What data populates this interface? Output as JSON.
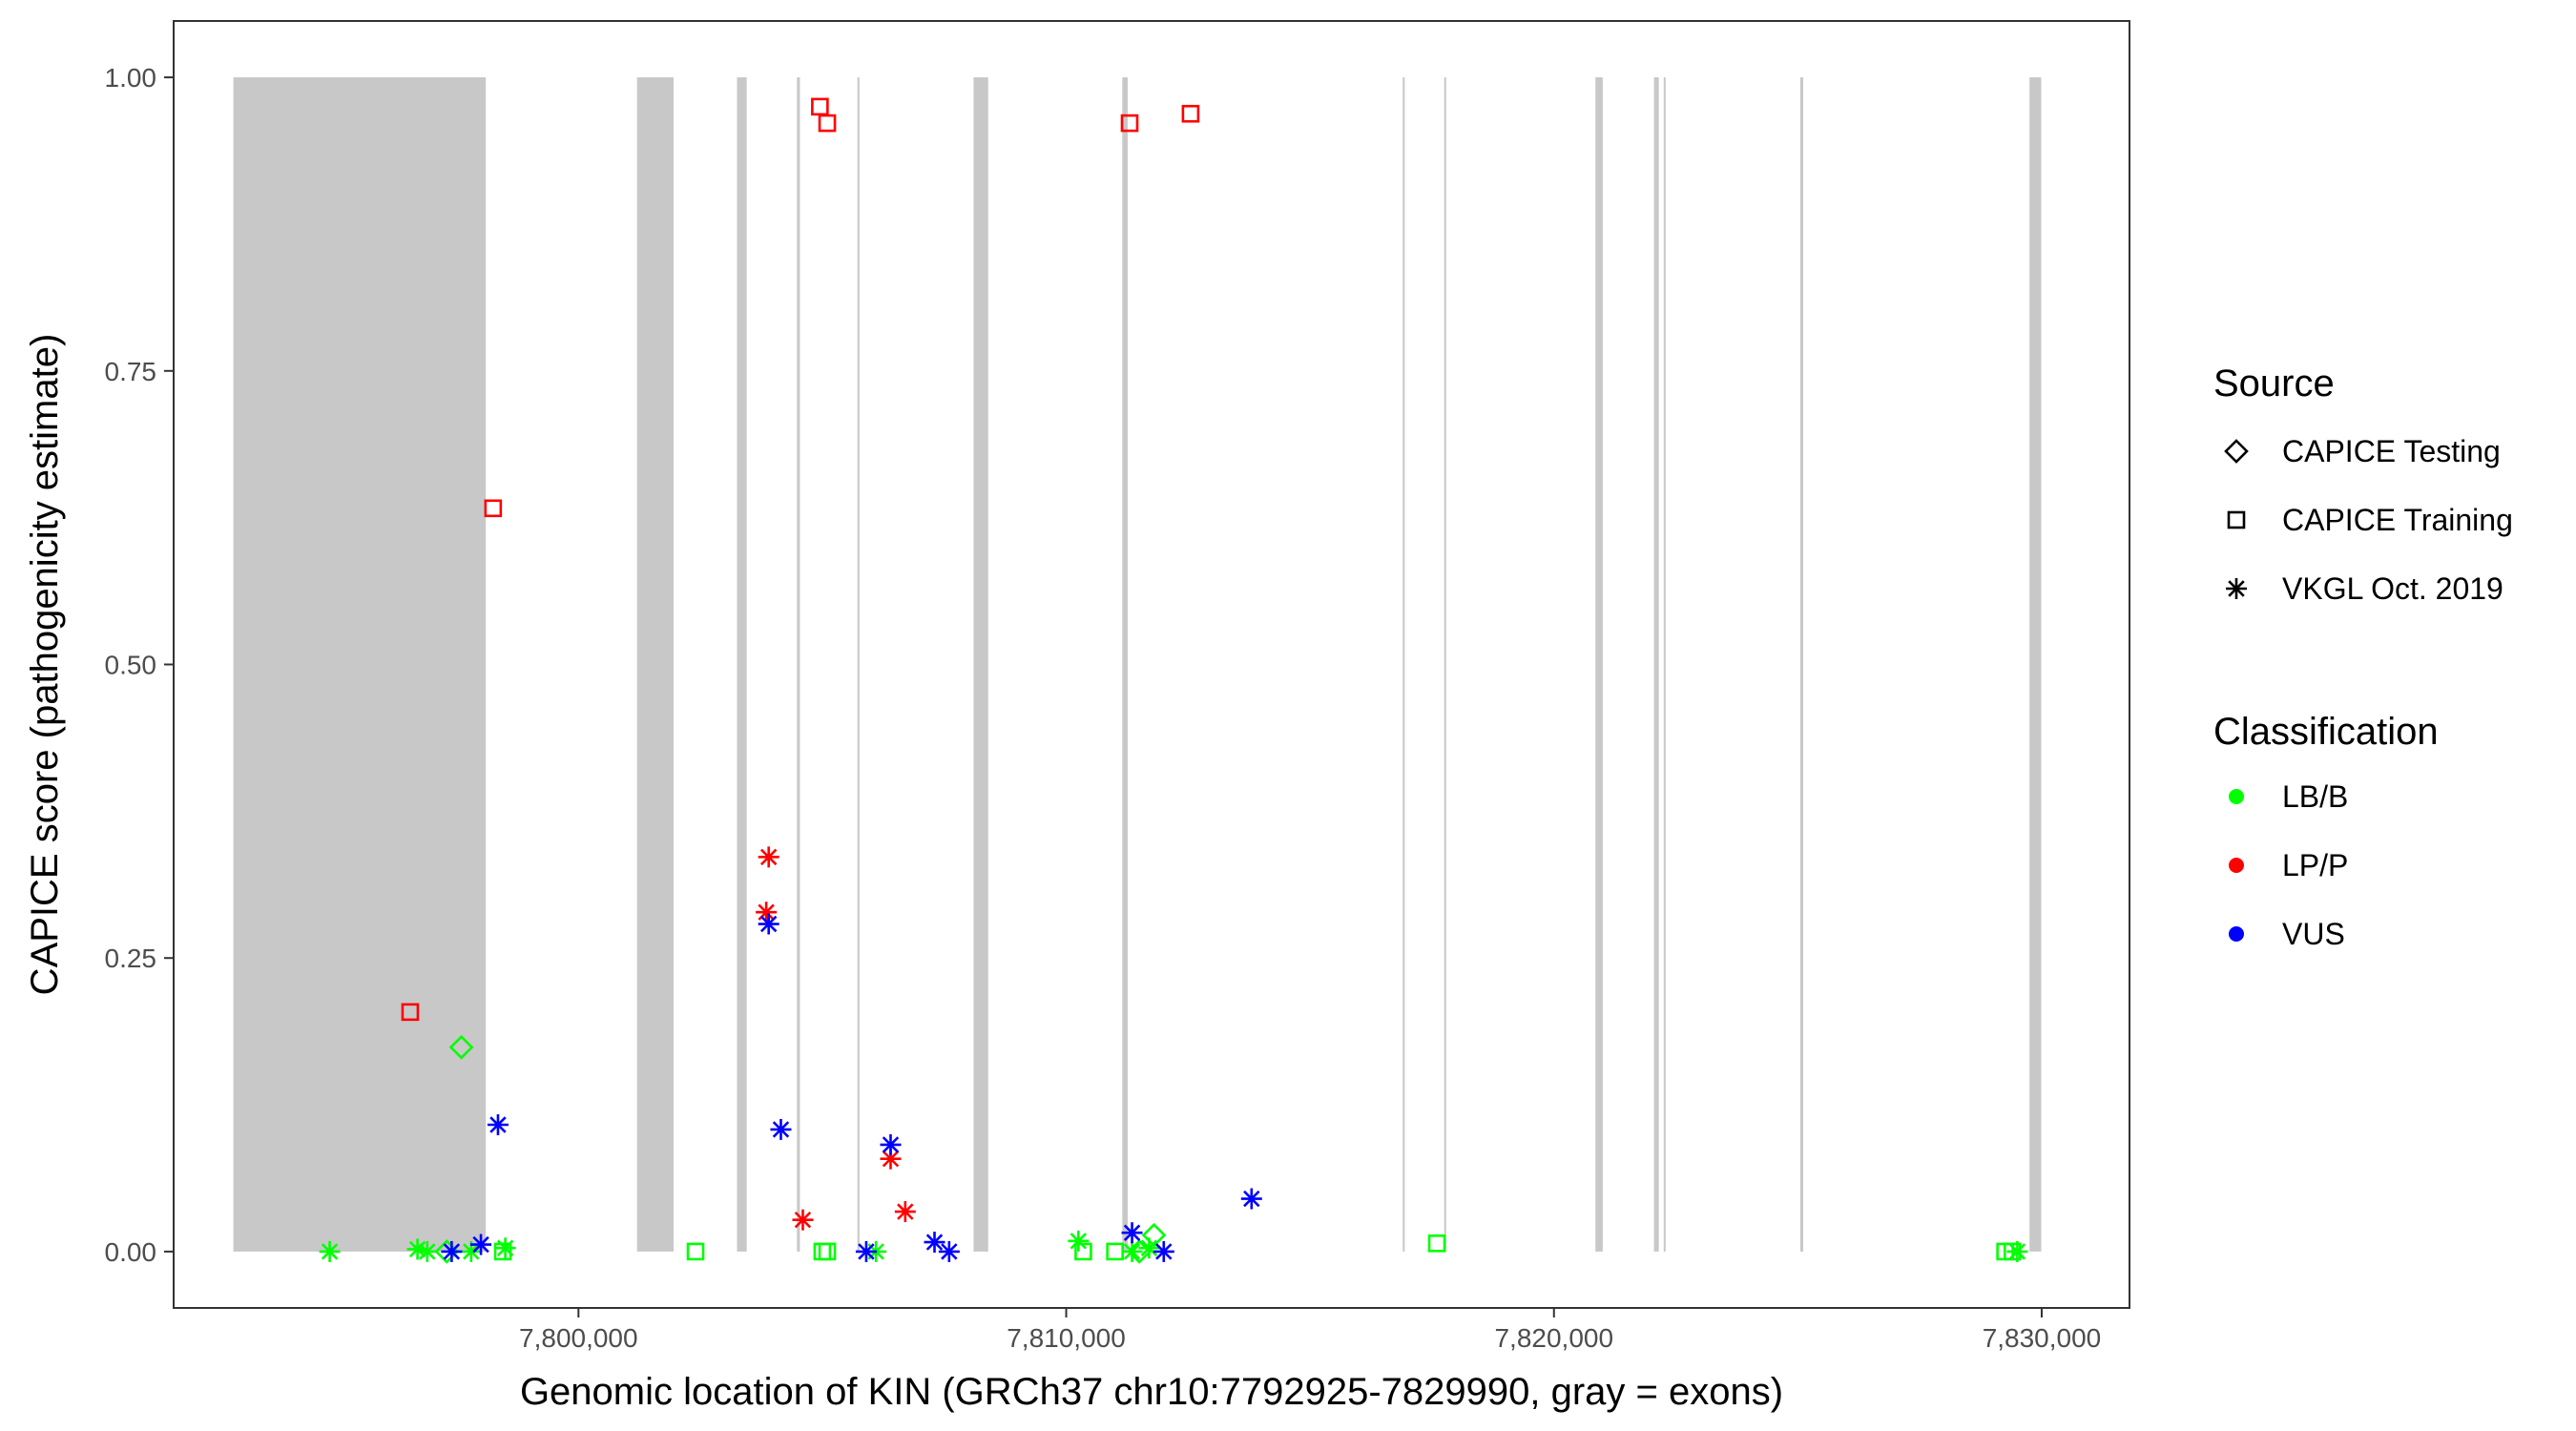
{
  "chart_data": {
    "type": "scatter",
    "xlabel": "Genomic location of KIN (GRCh37 chr10:7792925-7829990, gray = exons)",
    "ylabel": "CAPICE score (pathogenicity estimate)",
    "xlim": [
      7791700,
      7831800
    ],
    "ylim": [
      -0.048,
      1.048
    ],
    "x_ticks": [
      7800000,
      7810000,
      7820000,
      7830000
    ],
    "x_tick_labels": [
      "7,800,000",
      "7,810,000",
      "7,820,000",
      "7,830,000"
    ],
    "y_ticks": [
      0,
      0.25,
      0.5,
      0.75,
      1.0
    ],
    "y_tick_labels": [
      "0.00",
      "0.25",
      "0.50",
      "0.75",
      "1.00"
    ],
    "grid": false,
    "exon_color": "#c8c8c8",
    "exons": [
      [
        7792925,
        7798100
      ],
      [
        7801200,
        7801950
      ],
      [
        7803250,
        7803450
      ],
      [
        7804480,
        7804540
      ],
      [
        7805720,
        7805760
      ],
      [
        7808100,
        7808400
      ],
      [
        7811150,
        7811260
      ],
      [
        7816900,
        7816940
      ],
      [
        7817750,
        7817790
      ],
      [
        7820850,
        7821000
      ],
      [
        7822050,
        7822150
      ],
      [
        7822250,
        7822290
      ],
      [
        7825050,
        7825110
      ],
      [
        7829750,
        7829990
      ]
    ],
    "legend": {
      "placement": "right",
      "source_title": "Source",
      "source_items": [
        {
          "label": "CAPICE Testing",
          "shape": "diamond"
        },
        {
          "label": "CAPICE Training",
          "shape": "square"
        },
        {
          "label": "VKGL Oct. 2019",
          "shape": "asterisk"
        }
      ],
      "class_title": "Classification",
      "class_items": [
        {
          "label": "LB/B",
          "color": "#00ff00"
        },
        {
          "label": "LP/P",
          "color": "#ff0000"
        },
        {
          "label": "VUS",
          "color": "#0000ff"
        }
      ]
    },
    "points": [
      {
        "x": 7798250,
        "y": 0.633,
        "shape": "square",
        "cls": "LP/P"
      },
      {
        "x": 7796550,
        "y": 0.204,
        "shape": "square",
        "cls": "LP/P"
      },
      {
        "x": 7804950,
        "y": 0.975,
        "shape": "square",
        "cls": "LP/P"
      },
      {
        "x": 7805100,
        "y": 0.961,
        "shape": "square",
        "cls": "LP/P"
      },
      {
        "x": 7811300,
        "y": 0.961,
        "shape": "square",
        "cls": "LP/P"
      },
      {
        "x": 7812550,
        "y": 0.969,
        "shape": "square",
        "cls": "LP/P"
      },
      {
        "x": 7802400,
        "y": 0.0,
        "shape": "square",
        "cls": "LB/B"
      },
      {
        "x": 7805000,
        "y": 0.0,
        "shape": "square",
        "cls": "LB/B"
      },
      {
        "x": 7805100,
        "y": 0.0,
        "shape": "square",
        "cls": "LB/B"
      },
      {
        "x": 7810350,
        "y": 0.0,
        "shape": "square",
        "cls": "LB/B"
      },
      {
        "x": 7811000,
        "y": 0.0,
        "shape": "square",
        "cls": "LB/B"
      },
      {
        "x": 7817600,
        "y": 0.007,
        "shape": "square",
        "cls": "LB/B"
      },
      {
        "x": 7829250,
        "y": 0.0,
        "shape": "square",
        "cls": "LB/B"
      },
      {
        "x": 7829400,
        "y": 0.0,
        "shape": "square",
        "cls": "LB/B"
      },
      {
        "x": 7798450,
        "y": 0.0,
        "shape": "square",
        "cls": "LB/B"
      },
      {
        "x": 7797600,
        "y": 0.174,
        "shape": "diamond",
        "cls": "LB/B"
      },
      {
        "x": 7811800,
        "y": 0.014,
        "shape": "diamond",
        "cls": "LB/B"
      },
      {
        "x": 7797300,
        "y": 0.0,
        "shape": "diamond",
        "cls": "LB/B"
      },
      {
        "x": 7811500,
        "y": 0.0,
        "shape": "diamond",
        "cls": "LB/B"
      },
      {
        "x": 7794900,
        "y": 0.0,
        "shape": "asterisk",
        "cls": "LB/B"
      },
      {
        "x": 7796700,
        "y": 0.002,
        "shape": "asterisk",
        "cls": "LB/B"
      },
      {
        "x": 7796900,
        "y": 0.0,
        "shape": "asterisk",
        "cls": "LB/B"
      },
      {
        "x": 7797800,
        "y": 0.0,
        "shape": "asterisk",
        "cls": "LB/B"
      },
      {
        "x": 7798500,
        "y": 0.003,
        "shape": "asterisk",
        "cls": "LB/B"
      },
      {
        "x": 7806100,
        "y": 0.0,
        "shape": "asterisk",
        "cls": "LB/B"
      },
      {
        "x": 7810250,
        "y": 0.009,
        "shape": "asterisk",
        "cls": "LB/B"
      },
      {
        "x": 7811350,
        "y": 0.0,
        "shape": "asterisk",
        "cls": "LB/B"
      },
      {
        "x": 7811700,
        "y": 0.003,
        "shape": "asterisk",
        "cls": "LB/B"
      },
      {
        "x": 7829500,
        "y": 0.0,
        "shape": "asterisk",
        "cls": "LB/B"
      },
      {
        "x": 7803900,
        "y": 0.336,
        "shape": "asterisk",
        "cls": "LP/P"
      },
      {
        "x": 7803850,
        "y": 0.289,
        "shape": "asterisk",
        "cls": "LP/P"
      },
      {
        "x": 7804600,
        "y": 0.027,
        "shape": "asterisk",
        "cls": "LP/P"
      },
      {
        "x": 7806400,
        "y": 0.079,
        "shape": "asterisk",
        "cls": "LP/P"
      },
      {
        "x": 7806700,
        "y": 0.034,
        "shape": "asterisk",
        "cls": "LP/P"
      },
      {
        "x": 7803900,
        "y": 0.279,
        "shape": "asterisk",
        "cls": "VUS"
      },
      {
        "x": 7798350,
        "y": 0.108,
        "shape": "asterisk",
        "cls": "VUS"
      },
      {
        "x": 7804150,
        "y": 0.104,
        "shape": "asterisk",
        "cls": "VUS"
      },
      {
        "x": 7806400,
        "y": 0.091,
        "shape": "asterisk",
        "cls": "VUS"
      },
      {
        "x": 7813800,
        "y": 0.045,
        "shape": "asterisk",
        "cls": "VUS"
      },
      {
        "x": 7811350,
        "y": 0.016,
        "shape": "asterisk",
        "cls": "VUS"
      },
      {
        "x": 7807300,
        "y": 0.008,
        "shape": "asterisk",
        "cls": "VUS"
      },
      {
        "x": 7798000,
        "y": 0.006,
        "shape": "asterisk",
        "cls": "VUS"
      },
      {
        "x": 7797400,
        "y": 0.0,
        "shape": "asterisk",
        "cls": "VUS"
      },
      {
        "x": 7805900,
        "y": 0.0,
        "shape": "asterisk",
        "cls": "VUS"
      },
      {
        "x": 7807600,
        "y": 0.0,
        "shape": "asterisk",
        "cls": "VUS"
      },
      {
        "x": 7812000,
        "y": 0.0,
        "shape": "asterisk",
        "cls": "VUS"
      }
    ]
  }
}
